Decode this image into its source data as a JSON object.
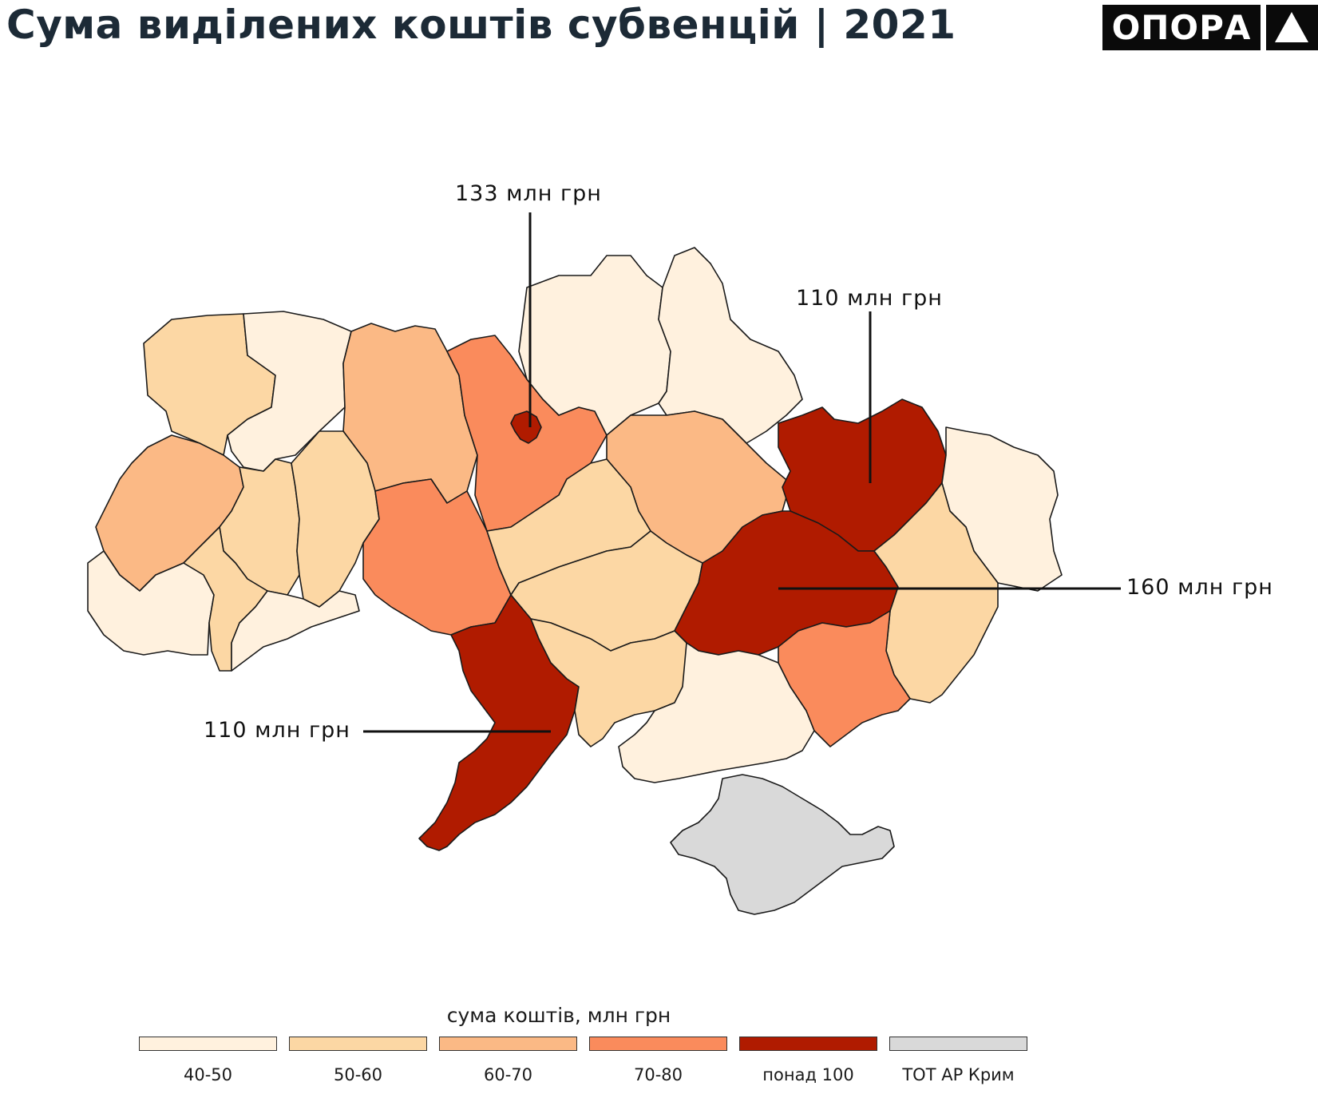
{
  "title": "Сума виділених коштів субвенцій | 2021",
  "logo": {
    "text": "ОПОРА",
    "mark_icon": "triangle-icon"
  },
  "colors": {
    "c40_50": "#fff1de",
    "c50_60": "#fcd7a4",
    "c60_70": "#fbb985",
    "c70_80": "#fa8b5c",
    "c100": "#b01b00",
    "crimea": "#d9d9d9",
    "outline": "#1a1a1a"
  },
  "callouts": {
    "kyiv": "133 млн грн",
    "kharkiv": "110 млн грн",
    "dnipro": "160 млн грн",
    "odesa": "110 млн грн"
  },
  "legend": {
    "title": "сума коштів, млн грн",
    "items": [
      {
        "label": "40-50",
        "color": "#fff1de"
      },
      {
        "label": "50-60",
        "color": "#fcd7a4"
      },
      {
        "label": "60-70",
        "color": "#fbb985"
      },
      {
        "label": "70-80",
        "color": "#fa8b5c"
      },
      {
        "label": "понад 100",
        "color": "#b01b00"
      },
      {
        "label": "ТОТ АР Крим",
        "color": "#d9d9d9"
      }
    ]
  }
}
